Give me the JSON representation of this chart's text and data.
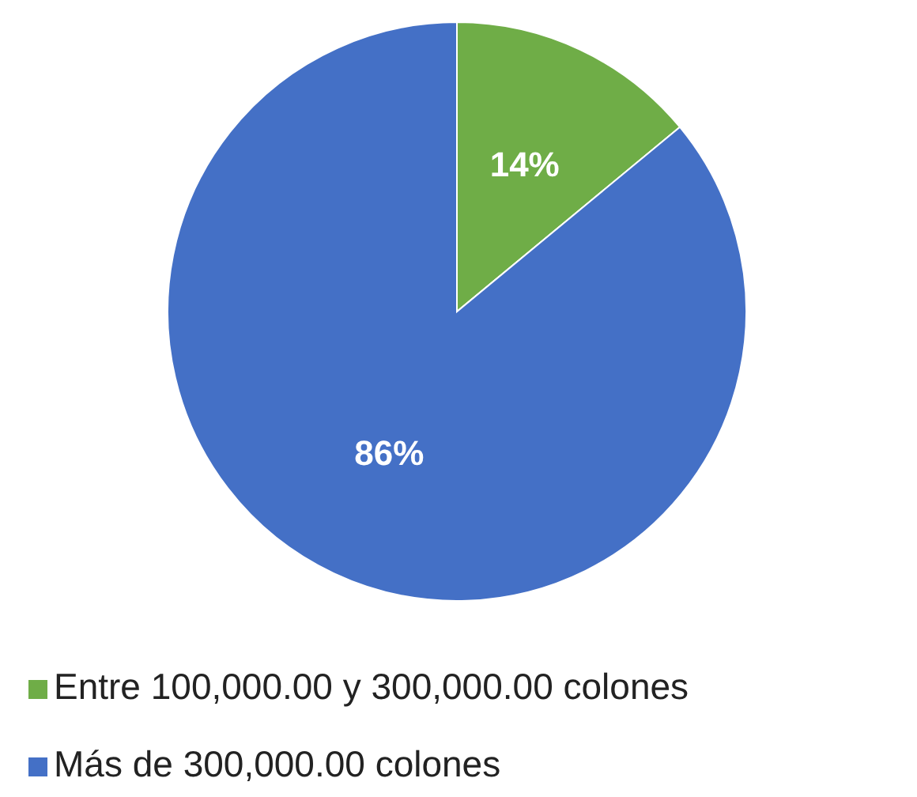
{
  "chart_data": {
    "type": "pie",
    "categories": [
      "Entre 100,000.00 y 300,000.00 colones",
      "Más de 300,000.00 colones"
    ],
    "values": [
      14,
      86
    ],
    "colors": [
      "#6fad47",
      "#4470c6"
    ],
    "value_labels": [
      "14%",
      "86%"
    ],
    "legend": "bottom"
  }
}
